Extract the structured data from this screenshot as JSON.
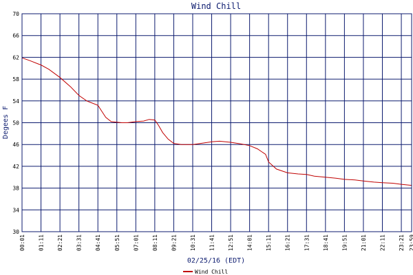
{
  "chart_data": {
    "type": "line",
    "title": "Wind Chill",
    "ylabel": "Degees F",
    "xlabel": "02/25/16 (EDT)",
    "ylim": [
      30,
      70
    ],
    "yticks": [
      30,
      34,
      38,
      42,
      46,
      50,
      54,
      58,
      62,
      66,
      70
    ],
    "xlim": [
      "00:01",
      "23:59"
    ],
    "xticks": [
      "00:01",
      "01:11",
      "02:21",
      "03:31",
      "04:41",
      "05:51",
      "07:01",
      "08:11",
      "09:21",
      "10:31",
      "11:41",
      "12:51",
      "14:01",
      "15:11",
      "16:21",
      "17:31",
      "18:41",
      "19:51",
      "21:01",
      "22:11",
      "23:21",
      "23:59"
    ],
    "grid": true,
    "legend": "bottom",
    "series": [
      {
        "name": "Wind Chill",
        "color": "#c00000",
        "x": [
          "00:01",
          "00:30",
          "01:00",
          "01:11",
          "01:40",
          "02:21",
          "03:00",
          "03:31",
          "04:00",
          "04:41",
          "05:10",
          "05:30",
          "05:51",
          "06:10",
          "06:30",
          "07:01",
          "07:30",
          "07:50",
          "08:11",
          "08:25",
          "08:40",
          "09:00",
          "09:21",
          "09:50",
          "10:31",
          "11:00",
          "11:41",
          "12:10",
          "12:51",
          "13:30",
          "14:01",
          "14:30",
          "15:00",
          "15:11",
          "15:40",
          "16:21",
          "17:00",
          "17:31",
          "18:00",
          "18:41",
          "19:20",
          "19:51",
          "20:30",
          "21:01",
          "21:40",
          "22:11",
          "22:50",
          "23:21",
          "23:59"
        ],
        "values": [
          61.9,
          61.4,
          60.8,
          60.6,
          59.8,
          58.3,
          56.6,
          55.0,
          54.0,
          53.2,
          51.0,
          50.2,
          50.1,
          50.0,
          50.0,
          50.2,
          50.3,
          50.6,
          50.5,
          49.5,
          48.2,
          47.0,
          46.2,
          46.0,
          46.0,
          46.2,
          46.5,
          46.6,
          46.4,
          46.1,
          45.8,
          45.2,
          44.2,
          42.8,
          41.5,
          40.8,
          40.6,
          40.5,
          40.2,
          40.0,
          39.8,
          39.6,
          39.5,
          39.3,
          39.1,
          39.0,
          38.9,
          38.7,
          38.5
        ]
      }
    ]
  }
}
